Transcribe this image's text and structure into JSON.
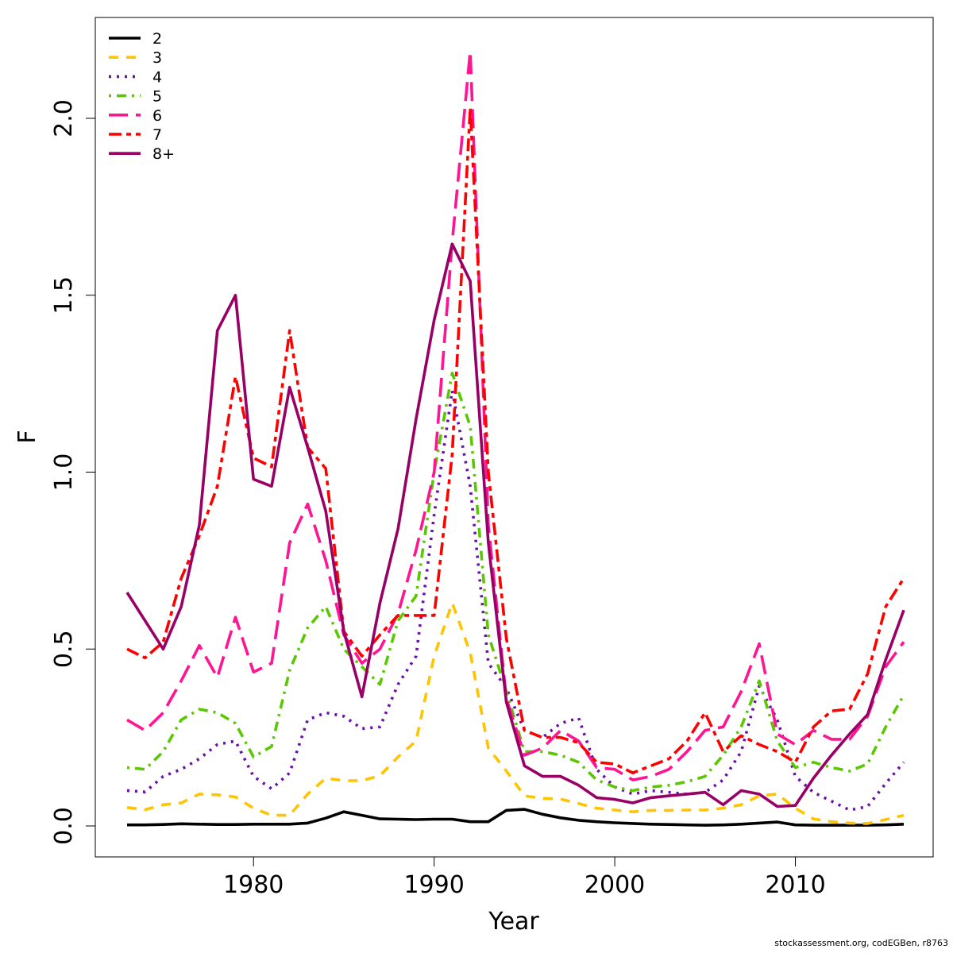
{
  "footer": "stockassessment.org, codEGBen, r8763",
  "chart_data": {
    "type": "line",
    "title": "",
    "xlabel": "Year",
    "ylabel": "F",
    "xlim": [
      1973,
      2016
    ],
    "ylim": [
      0,
      2.2
    ],
    "xticks": [
      1980,
      1990,
      2000,
      2010
    ],
    "yticks": [
      0.0,
      0.5,
      1.0,
      1.5,
      2.0
    ],
    "ytick_labels": [
      "0.0",
      "0.5",
      "1.0",
      "1.5",
      "2.0"
    ],
    "grid": false,
    "legend_position": "top-left",
    "x": [
      1973,
      1974,
      1975,
      1976,
      1977,
      1978,
      1979,
      1980,
      1981,
      1982,
      1983,
      1984,
      1985,
      1986,
      1987,
      1988,
      1989,
      1990,
      1991,
      1992,
      1993,
      1994,
      1995,
      1996,
      1997,
      1998,
      1999,
      2000,
      2001,
      2002,
      2003,
      2004,
      2005,
      2006,
      2007,
      2008,
      2009,
      2010,
      2011,
      2012,
      2013,
      2014,
      2015,
      2016
    ],
    "series": [
      {
        "name": "2",
        "color": "#000000",
        "dash": "solid",
        "values": [
          0.003,
          0.003,
          0.004,
          0.006,
          0.005,
          0.004,
          0.004,
          0.005,
          0.005,
          0.005,
          0.008,
          0.022,
          0.04,
          0.03,
          0.02,
          0.019,
          0.018,
          0.019,
          0.019,
          0.012,
          0.012,
          0.044,
          0.047,
          0.033,
          0.023,
          0.016,
          0.012,
          0.009,
          0.007,
          0.005,
          0.004,
          0.003,
          0.002,
          0.003,
          0.005,
          0.008,
          0.011,
          0.003,
          0.002,
          0.002,
          0.002,
          0.002,
          0.003,
          0.005
        ]
      },
      {
        "name": "3",
        "color": "#ffc400",
        "dash": "dashed",
        "values": [
          0.052,
          0.046,
          0.06,
          0.065,
          0.09,
          0.088,
          0.082,
          0.05,
          0.03,
          0.03,
          0.09,
          0.135,
          0.128,
          0.128,
          0.142,
          0.195,
          0.24,
          0.48,
          0.63,
          0.49,
          0.22,
          0.155,
          0.085,
          0.078,
          0.076,
          0.063,
          0.05,
          0.045,
          0.04,
          0.044,
          0.044,
          0.045,
          0.045,
          0.05,
          0.06,
          0.085,
          0.09,
          0.05,
          0.02,
          0.012,
          0.008,
          0.007,
          0.018,
          0.03
        ]
      },
      {
        "name": "4",
        "color": "#6a0dad",
        "dash": "dotted",
        "values": [
          0.1,
          0.096,
          0.14,
          0.16,
          0.19,
          0.23,
          0.24,
          0.14,
          0.105,
          0.15,
          0.3,
          0.32,
          0.31,
          0.275,
          0.28,
          0.4,
          0.48,
          0.88,
          1.23,
          0.96,
          0.46,
          0.39,
          0.27,
          0.25,
          0.29,
          0.305,
          0.16,
          0.11,
          0.09,
          0.1,
          0.095,
          0.09,
          0.095,
          0.13,
          0.21,
          0.395,
          0.3,
          0.14,
          0.095,
          0.07,
          0.045,
          0.055,
          0.12,
          0.18
        ]
      },
      {
        "name": "5",
        "color": "#5ac800",
        "dash": "dotdash",
        "values": [
          0.165,
          0.16,
          0.21,
          0.3,
          0.33,
          0.32,
          0.29,
          0.195,
          0.225,
          0.44,
          0.56,
          0.62,
          0.5,
          0.45,
          0.4,
          0.58,
          0.65,
          1.0,
          1.28,
          1.13,
          0.54,
          0.38,
          0.21,
          0.21,
          0.2,
          0.18,
          0.13,
          0.11,
          0.1,
          0.11,
          0.115,
          0.125,
          0.14,
          0.2,
          0.28,
          0.41,
          0.24,
          0.165,
          0.18,
          0.165,
          0.155,
          0.175,
          0.28,
          0.37
        ]
      },
      {
        "name": "6",
        "color": "#ff1493",
        "dash": "longdash",
        "values": [
          0.3,
          0.27,
          0.32,
          0.41,
          0.51,
          0.42,
          0.59,
          0.435,
          0.46,
          0.8,
          0.91,
          0.75,
          0.54,
          0.46,
          0.5,
          0.6,
          0.78,
          1.0,
          1.65,
          2.19,
          0.85,
          0.36,
          0.2,
          0.22,
          0.27,
          0.24,
          0.165,
          0.16,
          0.13,
          0.14,
          0.16,
          0.21,
          0.27,
          0.28,
          0.38,
          0.515,
          0.26,
          0.23,
          0.27,
          0.245,
          0.245,
          0.31,
          0.45,
          0.52
        ]
      },
      {
        "name": "7",
        "color": "#ff0000",
        "dash": "twodash",
        "values": [
          0.5,
          0.475,
          0.52,
          0.7,
          0.82,
          0.96,
          1.27,
          1.04,
          1.015,
          1.4,
          1.07,
          1.01,
          0.55,
          0.48,
          0.54,
          0.595,
          0.595,
          0.595,
          1.05,
          2.03,
          1.0,
          0.53,
          0.27,
          0.25,
          0.25,
          0.235,
          0.18,
          0.175,
          0.15,
          0.17,
          0.19,
          0.24,
          0.32,
          0.21,
          0.255,
          0.23,
          0.21,
          0.18,
          0.28,
          0.325,
          0.33,
          0.43,
          0.62,
          0.7
        ]
      },
      {
        "name": "8+",
        "color": "#990066",
        "dash": "solid",
        "values": [
          0.66,
          0.58,
          0.5,
          0.62,
          0.85,
          1.4,
          1.5,
          0.98,
          0.96,
          1.24,
          1.07,
          0.89,
          0.55,
          0.365,
          0.63,
          0.84,
          1.15,
          1.43,
          1.645,
          1.54,
          0.8,
          0.35,
          0.17,
          0.14,
          0.14,
          0.115,
          0.08,
          0.075,
          0.065,
          0.08,
          0.085,
          0.09,
          0.095,
          0.06,
          0.1,
          0.09,
          0.055,
          0.058,
          0.135,
          0.2,
          0.26,
          0.315,
          0.47,
          0.61
        ]
      }
    ]
  }
}
